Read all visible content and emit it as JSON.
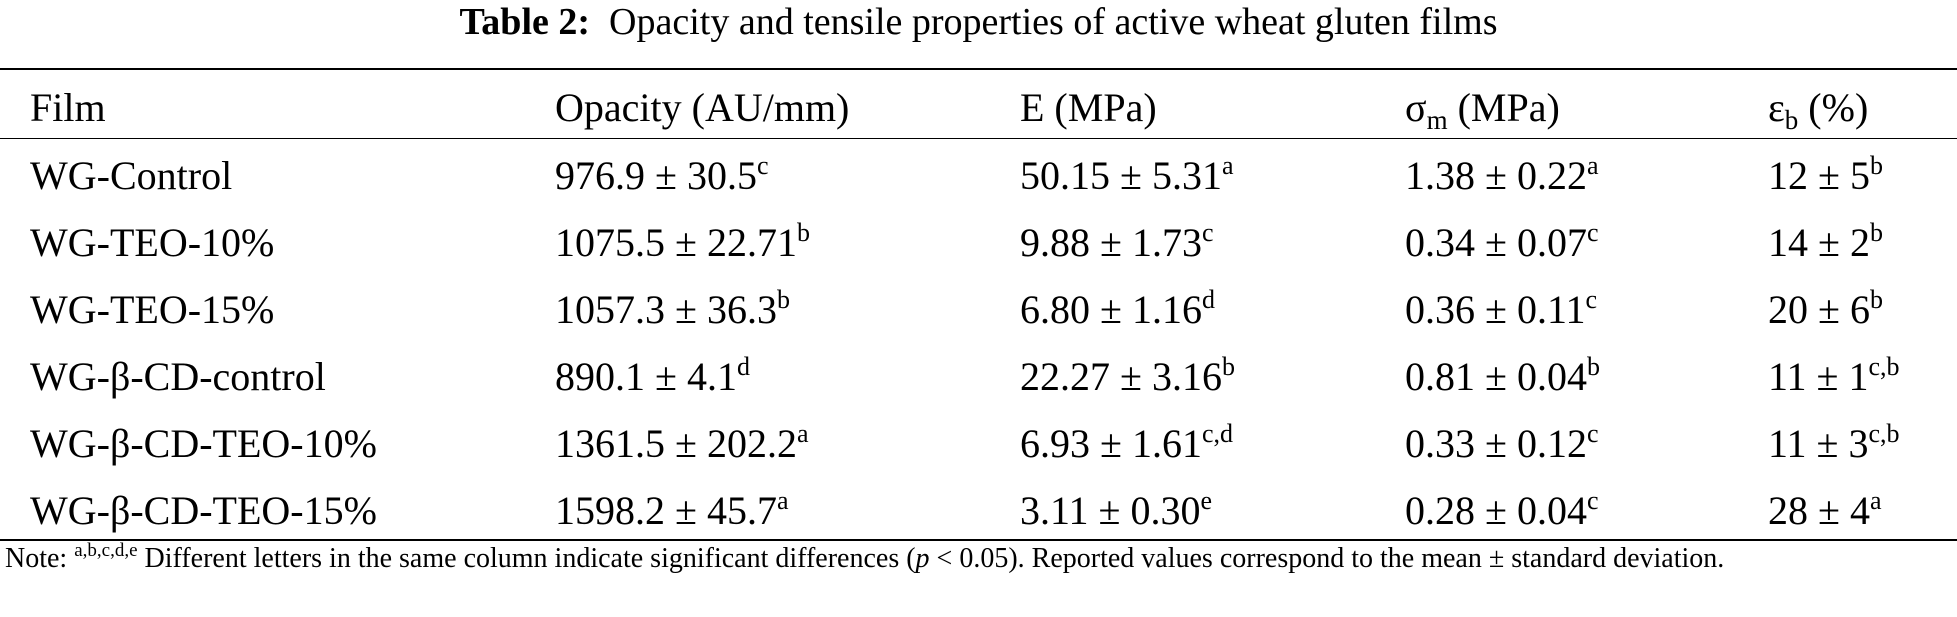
{
  "title": {
    "label": "Table 2:",
    "text": "Opacity and tensile properties of active wheat gluten films"
  },
  "header": {
    "film": "Film",
    "opacity": "Opacity (AU/mm)",
    "e": "E (MPa)",
    "sigma_symbol": "σ",
    "sigma_sub": "m",
    "sigma_unit": "(MPa)",
    "eps_symbol": "ε",
    "eps_sub": "b",
    "eps_unit": "(%)"
  },
  "rows": [
    {
      "film": "WG-Control",
      "opacity": "976.9 ± 30.5",
      "opacity_sup": "c",
      "e": "50.15 ± 5.31",
      "e_sup": "a",
      "sigma": "1.38 ± 0.22",
      "sigma_sup": "a",
      "eps": "12 ± 5",
      "eps_sup": "b"
    },
    {
      "film": "WG-TEO-10%",
      "opacity": "1075.5 ± 22.71",
      "opacity_sup": "b",
      "e": "9.88 ± 1.73",
      "e_sup": "c",
      "sigma": "0.34 ± 0.07",
      "sigma_sup": "c",
      "eps": "14 ± 2",
      "eps_sup": "b"
    },
    {
      "film": "WG-TEO-15%",
      "opacity": "1057.3 ± 36.3",
      "opacity_sup": "b",
      "e": "6.80 ± 1.16",
      "e_sup": "d",
      "sigma": "0.36 ± 0.11",
      "sigma_sup": "c",
      "eps": "20 ± 6",
      "eps_sup": "b"
    },
    {
      "film": "WG-β-CD-control",
      "opacity": "890.1 ± 4.1",
      "opacity_sup": "d",
      "e": "22.27 ± 3.16",
      "e_sup": "b",
      "sigma": "0.81 ± 0.04",
      "sigma_sup": "b",
      "eps": "11 ± 1",
      "eps_sup": "c,b"
    },
    {
      "film": "WG-β-CD-TEO-10%",
      "opacity": "1361.5 ± 202.2",
      "opacity_sup": "a",
      "e": "6.93 ± 1.61",
      "e_sup": "c,d",
      "sigma": "0.33 ± 0.12",
      "sigma_sup": "c",
      "eps": "11 ± 3",
      "eps_sup": "c,b"
    },
    {
      "film": "WG-β-CD-TEO-15%",
      "opacity": "1598.2 ± 45.7",
      "opacity_sup": "a",
      "e": "3.11 ± 0.30",
      "e_sup": "e",
      "sigma": "0.28 ± 0.04",
      "sigma_sup": "c",
      "eps": "28 ± 4",
      "eps_sup": "a"
    }
  ],
  "note": {
    "prefix": "Note:",
    "sup": "a,b,c,d,e",
    "text_before_p": " Different letters in the same column indicate significant differences (",
    "p": "p",
    "text_after_p": " < 0.05). Reported values correspond to the mean ± standard deviation."
  }
}
